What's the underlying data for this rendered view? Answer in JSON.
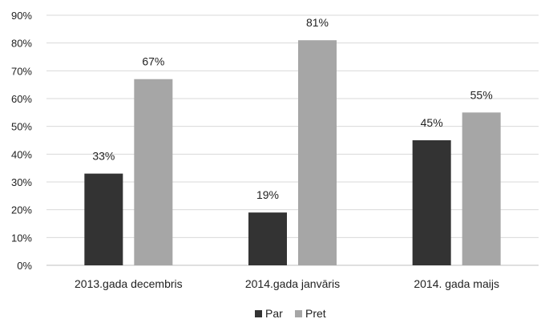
{
  "chart_data": {
    "type": "bar",
    "categories": [
      "2013.gada decembris",
      "2014.gada janvāris",
      "2014. gada maijs"
    ],
    "series": [
      {
        "name": "Par",
        "values": [
          33,
          19,
          45
        ],
        "labels": [
          "33%",
          "19%",
          "45%"
        ],
        "color": "#333333"
      },
      {
        "name": "Pret",
        "values": [
          67,
          81,
          55
        ],
        "labels": [
          "67%",
          "81%",
          "55%"
        ],
        "color": "#a6a6a6"
      }
    ],
    "ylim": [
      0,
      90
    ],
    "yticks": [
      "0%",
      "10%",
      "20%",
      "30%",
      "40%",
      "50%",
      "60%",
      "70%",
      "80%",
      "90%"
    ],
    "grid": true,
    "legend_position": "bottom"
  }
}
